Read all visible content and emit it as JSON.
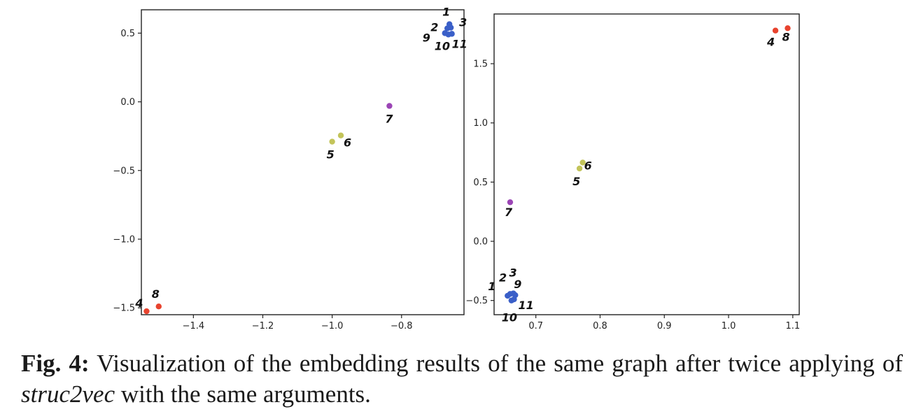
{
  "caption": {
    "label": "Fig. 4:",
    "text_before": " Visualization of the embedding results of the same graph after twice applying of ",
    "italic": "struc2vec",
    "text_after": " with the same arguments."
  },
  "chart_data": [
    {
      "type": "scatter",
      "title": "",
      "xlabel": "",
      "ylabel": "",
      "xlim": [
        -1.55,
        -0.62
      ],
      "ylim": [
        -1.55,
        0.67
      ],
      "xticks": [
        -1.4,
        -1.2,
        -1.0,
        -0.8
      ],
      "xtick_labels": [
        "−1.4",
        "−1.2",
        "−1.0",
        "−0.8"
      ],
      "yticks": [
        0.5,
        0.0,
        -0.5,
        -1.0,
        -1.5
      ],
      "ytick_labels": [
        "0.5",
        "0.0",
        "−0.5",
        "−1.0",
        "−1.5"
      ],
      "grid": false,
      "points": [
        {
          "label": "1",
          "x": -0.662,
          "y": 0.565,
          "color": "#3a5fc8"
        },
        {
          "label": "2",
          "x": -0.668,
          "y": 0.535,
          "color": "#3a5fc8"
        },
        {
          "label": "3",
          "x": -0.658,
          "y": 0.54,
          "color": "#3a5fc8"
        },
        {
          "label": "9",
          "x": -0.675,
          "y": 0.5,
          "color": "#3a5fc8"
        },
        {
          "label": "10",
          "x": -0.665,
          "y": 0.49,
          "color": "#3a5fc8"
        },
        {
          "label": "11",
          "x": -0.655,
          "y": 0.495,
          "color": "#3a5fc8"
        },
        {
          "label": "7",
          "x": -0.835,
          "y": -0.03,
          "color": "#9b45b5"
        },
        {
          "label": "5",
          "x": -1.0,
          "y": -0.29,
          "color": "#c3c45a"
        },
        {
          "label": "6",
          "x": -0.975,
          "y": -0.245,
          "color": "#c3c45a"
        },
        {
          "label": "4",
          "x": -1.535,
          "y": -1.525,
          "color": "#e8432e"
        },
        {
          "label": "8",
          "x": -1.5,
          "y": -1.49,
          "color": "#e8432e"
        }
      ]
    },
    {
      "type": "scatter",
      "title": "",
      "xlabel": "",
      "ylabel": "",
      "xlim": [
        0.635,
        1.11
      ],
      "ylim": [
        -0.62,
        1.92
      ],
      "xticks": [
        0.7,
        0.8,
        0.9,
        1.0,
        1.1
      ],
      "xtick_labels": [
        "0.7",
        "0.8",
        "0.9",
        "1.0",
        "1.1"
      ],
      "yticks": [
        1.5,
        1.0,
        0.5,
        0.0,
        -0.5
      ],
      "ytick_labels": [
        "1.5",
        "1.0",
        "0.5",
        "0.0",
        "−0.5"
      ],
      "grid": false,
      "points": [
        {
          "label": "1",
          "x": 0.656,
          "y": -0.46,
          "color": "#3a5fc8"
        },
        {
          "label": "2",
          "x": 0.66,
          "y": -0.445,
          "color": "#3a5fc8"
        },
        {
          "label": "3",
          "x": 0.665,
          "y": -0.44,
          "color": "#3a5fc8"
        },
        {
          "label": "9",
          "x": 0.668,
          "y": -0.455,
          "color": "#3a5fc8"
        },
        {
          "label": "10",
          "x": 0.662,
          "y": -0.5,
          "color": "#3a5fc8"
        },
        {
          "label": "11",
          "x": 0.666,
          "y": -0.49,
          "color": "#3a5fc8"
        },
        {
          "label": "7",
          "x": 0.66,
          "y": 0.33,
          "color": "#9b45b5"
        },
        {
          "label": "5",
          "x": 0.768,
          "y": 0.615,
          "color": "#c3c45a"
        },
        {
          "label": "6",
          "x": 0.773,
          "y": 0.665,
          "color": "#c3c45a"
        },
        {
          "label": "4",
          "x": 1.073,
          "y": 1.78,
          "color": "#e8432e"
        },
        {
          "label": "8",
          "x": 1.092,
          "y": 1.8,
          "color": "#e8432e"
        }
      ]
    }
  ]
}
